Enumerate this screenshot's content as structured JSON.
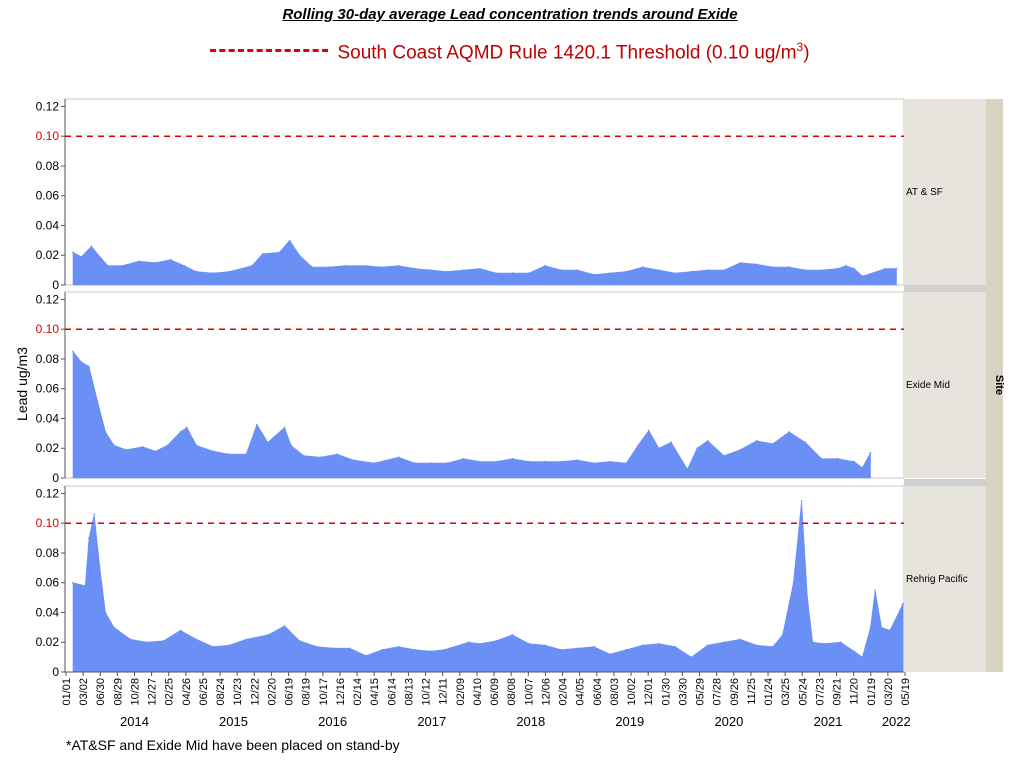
{
  "title": "Rolling 30-day average Lead concentration trends around Exide",
  "legend": {
    "text": "South Coast AQMD Rule 1420.1 Threshold (0.10 ug/m",
    "superscript": "3",
    "suffix": ")",
    "color": "#e00000"
  },
  "footnote": "*AT&SF and Exide Mid have been placed on stand-by",
  "colors": {
    "series": "#6a8ff5",
    "threshold": "#e00000",
    "strip": "#e6e4dc",
    "strip_outer": "#d7d4c2"
  },
  "chart_data": {
    "type": "area",
    "ylabel": "Lead ug/m3",
    "group_label": "Site",
    "threshold": 0.1,
    "y_ticks": [
      "0",
      "0.02",
      "0.04",
      "0.06",
      "0.08",
      "0.10",
      "0.12"
    ],
    "ylim": [
      0,
      0.125
    ],
    "x_range": [
      "2014-01-01",
      "2022-05-19"
    ],
    "x_tick_labels": [
      "01/01",
      "03/02",
      "06/30",
      "08/29",
      "10/28",
      "12/27",
      "02/25",
      "04/26",
      "06/25",
      "08/24",
      "10/23",
      "12/22",
      "02/20",
      "06/19",
      "08/19",
      "10/17",
      "12/16",
      "02/14",
      "04/15",
      "06/14",
      "08/13",
      "10/12",
      "12/11",
      "02/09",
      "04/10",
      "06/09",
      "08/08",
      "10/07",
      "12/06",
      "02/04",
      "04/05",
      "06/04",
      "08/03",
      "10/02",
      "12/01",
      "01/30",
      "03/30",
      "05/29",
      "07/28",
      "09/26",
      "11/25",
      "01/24",
      "03/25",
      "05/24",
      "07/23",
      "09/21",
      "11/20",
      "01/19",
      "03/20",
      "05/19"
    ],
    "year_labels": [
      "2014",
      "2015",
      "2016",
      "2017",
      "2018",
      "2019",
      "2020",
      "2021",
      "2022"
    ],
    "panels": [
      {
        "site": "AT & SF",
        "series": [
          {
            "x": "2014-01-01",
            "y": 0.022
          },
          {
            "x": "2014-02-01",
            "y": 0.019
          },
          {
            "x": "2014-03-10",
            "y": 0.026
          },
          {
            "x": "2014-04-15",
            "y": 0.018
          },
          {
            "x": "2014-05-10",
            "y": 0.013
          },
          {
            "x": "2014-07-01",
            "y": 0.013
          },
          {
            "x": "2014-09-01",
            "y": 0.016
          },
          {
            "x": "2014-11-01",
            "y": 0.015
          },
          {
            "x": "2014-12-27",
            "y": 0.017
          },
          {
            "x": "2015-02-15",
            "y": 0.013
          },
          {
            "x": "2015-04-01",
            "y": 0.009
          },
          {
            "x": "2015-06-01",
            "y": 0.008
          },
          {
            "x": "2015-08-01",
            "y": 0.009
          },
          {
            "x": "2015-10-23",
            "y": 0.013
          },
          {
            "x": "2015-12-01",
            "y": 0.021
          },
          {
            "x": "2016-02-01",
            "y": 0.022
          },
          {
            "x": "2016-03-10",
            "y": 0.03
          },
          {
            "x": "2016-04-15",
            "y": 0.02
          },
          {
            "x": "2016-06-01",
            "y": 0.012
          },
          {
            "x": "2016-08-01",
            "y": 0.012
          },
          {
            "x": "2016-10-01",
            "y": 0.013
          },
          {
            "x": "2016-12-16",
            "y": 0.013
          },
          {
            "x": "2017-02-14",
            "y": 0.012
          },
          {
            "x": "2017-04-15",
            "y": 0.013
          },
          {
            "x": "2017-06-14",
            "y": 0.011
          },
          {
            "x": "2017-08-13",
            "y": 0.01
          },
          {
            "x": "2017-10-12",
            "y": 0.009
          },
          {
            "x": "2017-12-11",
            "y": 0.01
          },
          {
            "x": "2018-02-09",
            "y": 0.011
          },
          {
            "x": "2018-04-10",
            "y": 0.008
          },
          {
            "x": "2018-06-09",
            "y": 0.008
          },
          {
            "x": "2018-08-08",
            "y": 0.008
          },
          {
            "x": "2018-10-07",
            "y": 0.013
          },
          {
            "x": "2018-12-06",
            "y": 0.01
          },
          {
            "x": "2019-02-04",
            "y": 0.01
          },
          {
            "x": "2019-04-05",
            "y": 0.007
          },
          {
            "x": "2019-06-04",
            "y": 0.008
          },
          {
            "x": "2019-08-03",
            "y": 0.009
          },
          {
            "x": "2019-10-02",
            "y": 0.012
          },
          {
            "x": "2019-12-01",
            "y": 0.01
          },
          {
            "x": "2020-01-30",
            "y": 0.008
          },
          {
            "x": "2020-03-30",
            "y": 0.009
          },
          {
            "x": "2020-05-29",
            "y": 0.01
          },
          {
            "x": "2020-07-28",
            "y": 0.01
          },
          {
            "x": "2020-09-26",
            "y": 0.015
          },
          {
            "x": "2020-11-25",
            "y": 0.014
          },
          {
            "x": "2021-01-24",
            "y": 0.012
          },
          {
            "x": "2021-03-25",
            "y": 0.012
          },
          {
            "x": "2021-05-24",
            "y": 0.01
          },
          {
            "x": "2021-07-23",
            "y": 0.01
          },
          {
            "x": "2021-09-21",
            "y": 0.011
          },
          {
            "x": "2021-10-21",
            "y": 0.013
          },
          {
            "x": "2021-11-20",
            "y": 0.011
          },
          {
            "x": "2021-12-20",
            "y": 0.006
          },
          {
            "x": "2022-03-15",
            "y": 0.011
          },
          {
            "x": "2022-04-25",
            "y": 0.011
          }
        ],
        "gaps": [
          [
            "2021-12-25",
            "2022-03-10"
          ]
        ]
      },
      {
        "site": "Exide Mid",
        "series": [
          {
            "x": "2014-01-01",
            "y": 0.085
          },
          {
            "x": "2014-02-01",
            "y": 0.078
          },
          {
            "x": "2014-03-01",
            "y": 0.075
          },
          {
            "x": "2014-04-01",
            "y": 0.052
          },
          {
            "x": "2014-05-01",
            "y": 0.031
          },
          {
            "x": "2014-06-01",
            "y": 0.022
          },
          {
            "x": "2014-07-15",
            "y": 0.019
          },
          {
            "x": "2014-09-15",
            "y": 0.021
          },
          {
            "x": "2014-11-01",
            "y": 0.018
          },
          {
            "x": "2014-12-15",
            "y": 0.022
          },
          {
            "x": "2015-02-01",
            "y": 0.031
          },
          {
            "x": "2015-02-25",
            "y": 0.034
          },
          {
            "x": "2015-04-01",
            "y": 0.022
          },
          {
            "x": "2015-06-01",
            "y": 0.018
          },
          {
            "x": "2015-08-01",
            "y": 0.016
          },
          {
            "x": "2015-10-01",
            "y": 0.016
          },
          {
            "x": "2015-11-10",
            "y": 0.036
          },
          {
            "x": "2015-12-20",
            "y": 0.024
          },
          {
            "x": "2016-02-20",
            "y": 0.034
          },
          {
            "x": "2016-03-15",
            "y": 0.022
          },
          {
            "x": "2016-05-01",
            "y": 0.015
          },
          {
            "x": "2016-07-01",
            "y": 0.014
          },
          {
            "x": "2016-09-01",
            "y": 0.016
          },
          {
            "x": "2016-11-01",
            "y": 0.012
          },
          {
            "x": "2017-01-15",
            "y": 0.01
          },
          {
            "x": "2017-04-15",
            "y": 0.014
          },
          {
            "x": "2017-06-14",
            "y": 0.01
          },
          {
            "x": "2017-08-13",
            "y": 0.01
          },
          {
            "x": "2017-10-12",
            "y": 0.01
          },
          {
            "x": "2017-12-11",
            "y": 0.013
          },
          {
            "x": "2018-02-09",
            "y": 0.011
          },
          {
            "x": "2018-04-10",
            "y": 0.011
          },
          {
            "x": "2018-06-09",
            "y": 0.013
          },
          {
            "x": "2018-08-08",
            "y": 0.011
          },
          {
            "x": "2018-10-07",
            "y": 0.011
          },
          {
            "x": "2018-12-06",
            "y": 0.011
          },
          {
            "x": "2019-02-04",
            "y": 0.012
          },
          {
            "x": "2019-04-05",
            "y": 0.01
          },
          {
            "x": "2019-06-04",
            "y": 0.011
          },
          {
            "x": "2019-08-03",
            "y": 0.01
          },
          {
            "x": "2019-09-15",
            "y": 0.022
          },
          {
            "x": "2019-10-25",
            "y": 0.032
          },
          {
            "x": "2019-12-01",
            "y": 0.02
          },
          {
            "x": "2020-01-15",
            "y": 0.024
          },
          {
            "x": "2020-03-15",
            "y": 0.006
          },
          {
            "x": "2020-04-20",
            "y": 0.02
          },
          {
            "x": "2020-05-29",
            "y": 0.025
          },
          {
            "x": "2020-07-28",
            "y": 0.015
          },
          {
            "x": "2020-09-26",
            "y": 0.019
          },
          {
            "x": "2020-11-25",
            "y": 0.025
          },
          {
            "x": "2021-01-24",
            "y": 0.023
          },
          {
            "x": "2021-03-25",
            "y": 0.031
          },
          {
            "x": "2021-05-24",
            "y": 0.024
          },
          {
            "x": "2021-07-23",
            "y": 0.013
          },
          {
            "x": "2021-09-21",
            "y": 0.013
          },
          {
            "x": "2021-11-20",
            "y": 0.011
          },
          {
            "x": "2021-12-20",
            "y": 0.007
          },
          {
            "x": "2022-01-19",
            "y": 0.017
          }
        ],
        "gaps": []
      },
      {
        "site": "Rehrig Pacific",
        "series": [
          {
            "x": "2014-01-01",
            "y": 0.06
          },
          {
            "x": "2014-02-15",
            "y": 0.058
          },
          {
            "x": "2014-03-01",
            "y": 0.09
          },
          {
            "x": "2014-03-20",
            "y": 0.106
          },
          {
            "x": "2014-04-10",
            "y": 0.07
          },
          {
            "x": "2014-05-01",
            "y": 0.04
          },
          {
            "x": "2014-06-01",
            "y": 0.03
          },
          {
            "x": "2014-08-01",
            "y": 0.022
          },
          {
            "x": "2014-10-01",
            "y": 0.02
          },
          {
            "x": "2014-12-01",
            "y": 0.021
          },
          {
            "x": "2015-02-01",
            "y": 0.028
          },
          {
            "x": "2015-04-01",
            "y": 0.022
          },
          {
            "x": "2015-06-01",
            "y": 0.017
          },
          {
            "x": "2015-08-01",
            "y": 0.018
          },
          {
            "x": "2015-10-01",
            "y": 0.022
          },
          {
            "x": "2015-12-22",
            "y": 0.025
          },
          {
            "x": "2016-02-20",
            "y": 0.031
          },
          {
            "x": "2016-04-15",
            "y": 0.021
          },
          {
            "x": "2016-06-19",
            "y": 0.017
          },
          {
            "x": "2016-08-19",
            "y": 0.016
          },
          {
            "x": "2016-10-17",
            "y": 0.016
          },
          {
            "x": "2016-12-16",
            "y": 0.011
          },
          {
            "x": "2017-02-14",
            "y": 0.015
          },
          {
            "x": "2017-04-15",
            "y": 0.017
          },
          {
            "x": "2017-06-14",
            "y": 0.015
          },
          {
            "x": "2017-08-13",
            "y": 0.014
          },
          {
            "x": "2017-10-01",
            "y": 0.015
          },
          {
            "x": "2017-12-30",
            "y": 0.02
          },
          {
            "x": "2018-02-09",
            "y": 0.019
          },
          {
            "x": "2018-04-10",
            "y": 0.021
          },
          {
            "x": "2018-06-09",
            "y": 0.025
          },
          {
            "x": "2018-08-08",
            "y": 0.019
          },
          {
            "x": "2018-10-07",
            "y": 0.018
          },
          {
            "x": "2018-12-06",
            "y": 0.015
          },
          {
            "x": "2019-02-04",
            "y": 0.016
          },
          {
            "x": "2019-04-05",
            "y": 0.017
          },
          {
            "x": "2019-06-04",
            "y": 0.012
          },
          {
            "x": "2019-08-03",
            "y": 0.015
          },
          {
            "x": "2019-10-02",
            "y": 0.018
          },
          {
            "x": "2019-12-01",
            "y": 0.019
          },
          {
            "x": "2020-01-30",
            "y": 0.017
          },
          {
            "x": "2020-03-30",
            "y": 0.01
          },
          {
            "x": "2020-05-29",
            "y": 0.018
          },
          {
            "x": "2020-07-28",
            "y": 0.02
          },
          {
            "x": "2020-09-26",
            "y": 0.022
          },
          {
            "x": "2020-11-25",
            "y": 0.018
          },
          {
            "x": "2021-01-24",
            "y": 0.017
          },
          {
            "x": "2021-03-01",
            "y": 0.025
          },
          {
            "x": "2021-04-10",
            "y": 0.06
          },
          {
            "x": "2021-05-10",
            "y": 0.115
          },
          {
            "x": "2021-06-01",
            "y": 0.05
          },
          {
            "x": "2021-06-20",
            "y": 0.02
          },
          {
            "x": "2021-08-01",
            "y": 0.019
          },
          {
            "x": "2021-10-01",
            "y": 0.02
          },
          {
            "x": "2021-11-20",
            "y": 0.014
          },
          {
            "x": "2021-12-20",
            "y": 0.01
          },
          {
            "x": "2022-01-19",
            "y": 0.03
          },
          {
            "x": "2022-02-05",
            "y": 0.055
          },
          {
            "x": "2022-03-01",
            "y": 0.03
          },
          {
            "x": "2022-04-01",
            "y": 0.028
          },
          {
            "x": "2022-05-19",
            "y": 0.046
          }
        ],
        "gaps": [
          [
            "2017-10-20",
            "2017-12-30"
          ]
        ]
      }
    ]
  }
}
